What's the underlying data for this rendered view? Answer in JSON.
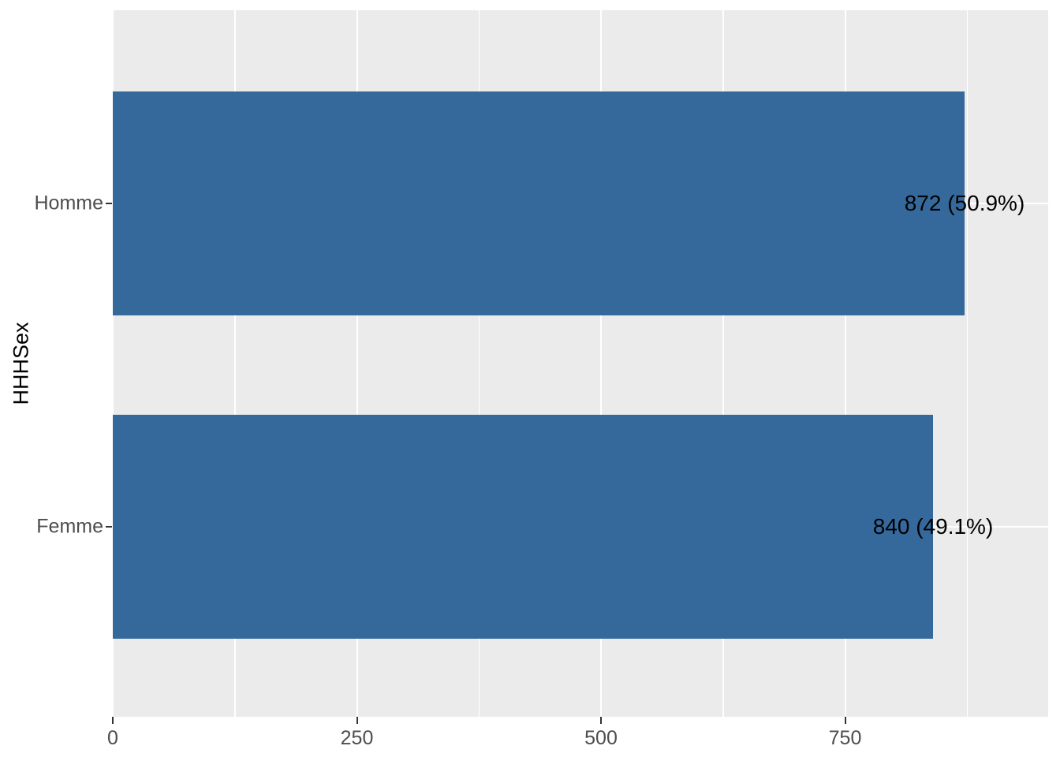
{
  "chart_data": {
    "type": "bar",
    "orientation": "horizontal",
    "title": "",
    "xlabel": "",
    "ylabel": "HHHSex",
    "categories": [
      "Homme",
      "Femme"
    ],
    "values": [
      872,
      840
    ],
    "percentages": [
      50.9,
      49.1
    ],
    "annotations": [
      "872 (50.9%)",
      "840 (49.1%)"
    ],
    "x_major_ticks": [
      0,
      250,
      500,
      750
    ],
    "x_major_tick_labels": [
      "0",
      "250",
      "500",
      "750"
    ],
    "x_minor_gridlines": [
      125,
      375,
      625,
      875
    ],
    "xlim": [
      0,
      958
    ],
    "grid": true,
    "legend": "none",
    "colors": {
      "bar_fill": "#35699C",
      "panel_background": "#EBEBEB",
      "gridline": "#FFFFFF",
      "axis_text": "#4D4D4D",
      "axis_title_text": "#000000",
      "annotation_text": "#000000",
      "tick_mark": "#333333"
    }
  }
}
